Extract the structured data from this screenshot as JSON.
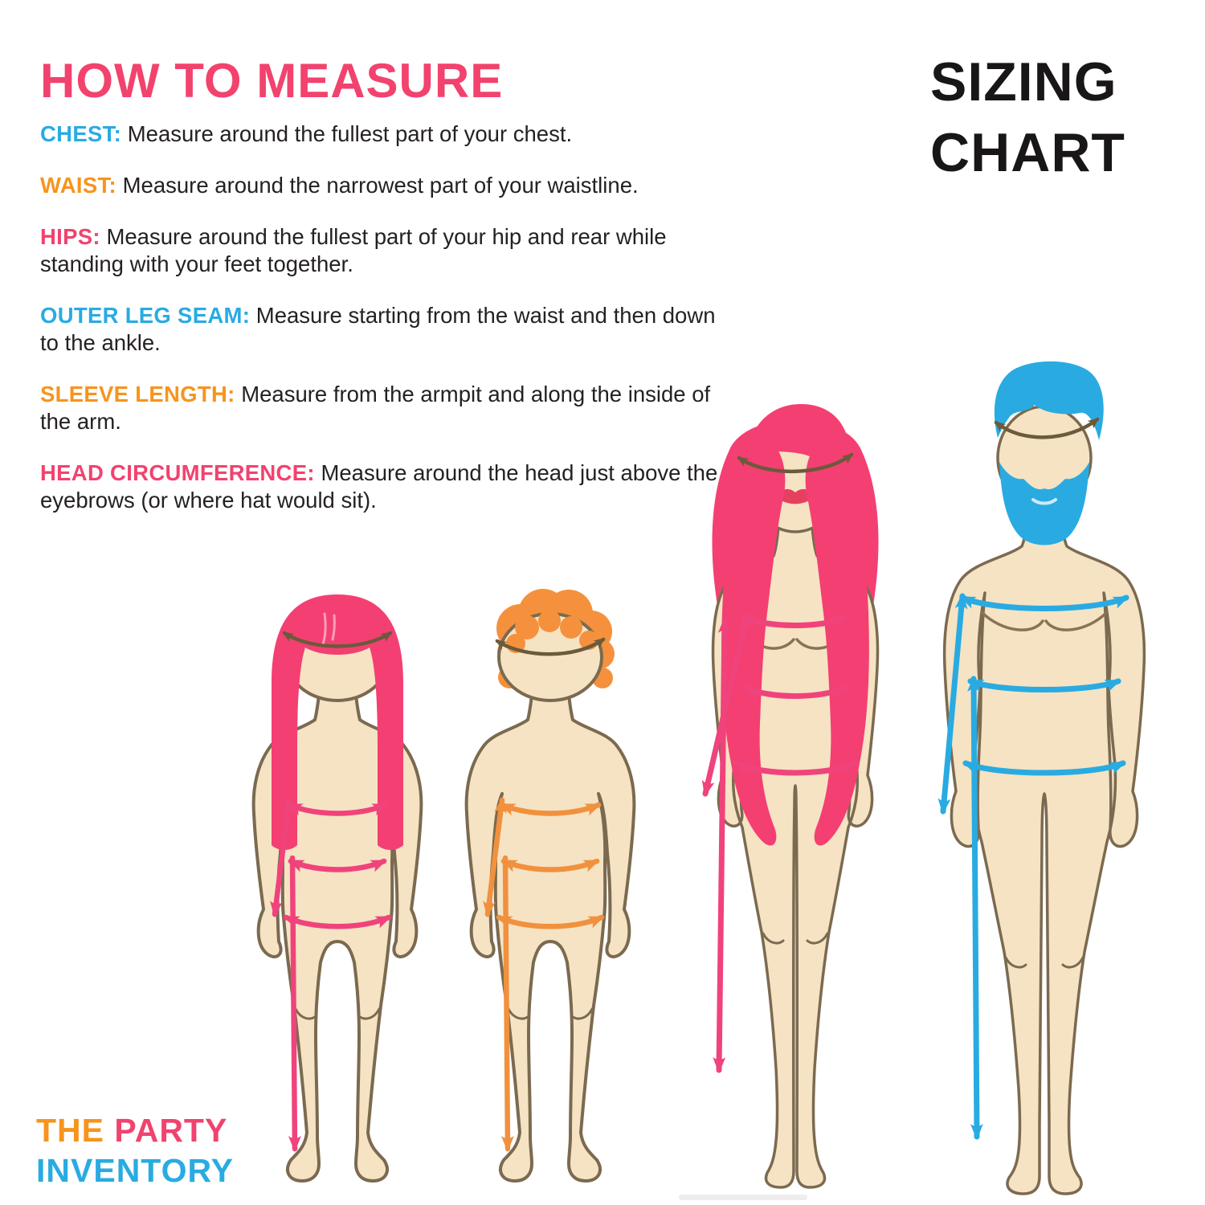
{
  "header": {
    "title": "HOW TO MEASURE",
    "title_color": "#F2426E"
  },
  "sizing_chart_label": {
    "line1": "SIZING",
    "line2": "CHART",
    "color": "#191617"
  },
  "instructions": [
    {
      "key": "chest",
      "label": "CHEST:",
      "label_color": "#29ABE2",
      "text": "Measure around the fullest part of your chest."
    },
    {
      "key": "waist",
      "label": "WAIST:",
      "label_color": "#F7941D",
      "text": "Measure around the narrowest part of your waistline."
    },
    {
      "key": "hips",
      "label": "HIPS:",
      "label_color": "#F2426E",
      "text": "Measure around the fullest part of your hip and rear while standing with your feet together."
    },
    {
      "key": "outer-leg-seam",
      "label": "OUTER LEG SEAM:",
      "label_color": "#29ABE2",
      "text": "Measure starting from the waist and then down to the ankle."
    },
    {
      "key": "sleeve-length",
      "label": "SLEEVE LENGTH:",
      "label_color": "#F7941D",
      "text": "Measure from the armpit and along the inside of the arm."
    },
    {
      "key": "head-circumference",
      "label": "HEAD CIRCUMFERENCE:",
      "label_color": "#F2426E",
      "text": "Measure around the head just above the eyebrows (or where hat would sit)."
    }
  ],
  "figures": {
    "girl": {
      "label": "child girl",
      "hair_color": "#F43F72",
      "line_color": "#F0437B"
    },
    "boy": {
      "label": "child boy",
      "hair_color": "#F5913C",
      "line_color": "#F1913D"
    },
    "woman": {
      "label": "adult woman",
      "hair_color": "#F43F72",
      "line_color": "#F0437B",
      "lip_color": "#E5415E"
    },
    "man": {
      "label": "adult man",
      "hair_color": "#29ABE2",
      "line_color": "#29ABE2"
    }
  },
  "brand": {
    "word1": "THE",
    "word1_color": "#F7941D",
    "word2": "PARTY",
    "word2_color": "#F0436E",
    "word3": "INVENTORY",
    "word3_color": "#29ABE2"
  },
  "palette": {
    "skin": "#F5E3C4",
    "outline": "#7B6A50",
    "head_arc": "#6B5A3C",
    "body_text": "#252122",
    "background": "#FFFFFF"
  }
}
